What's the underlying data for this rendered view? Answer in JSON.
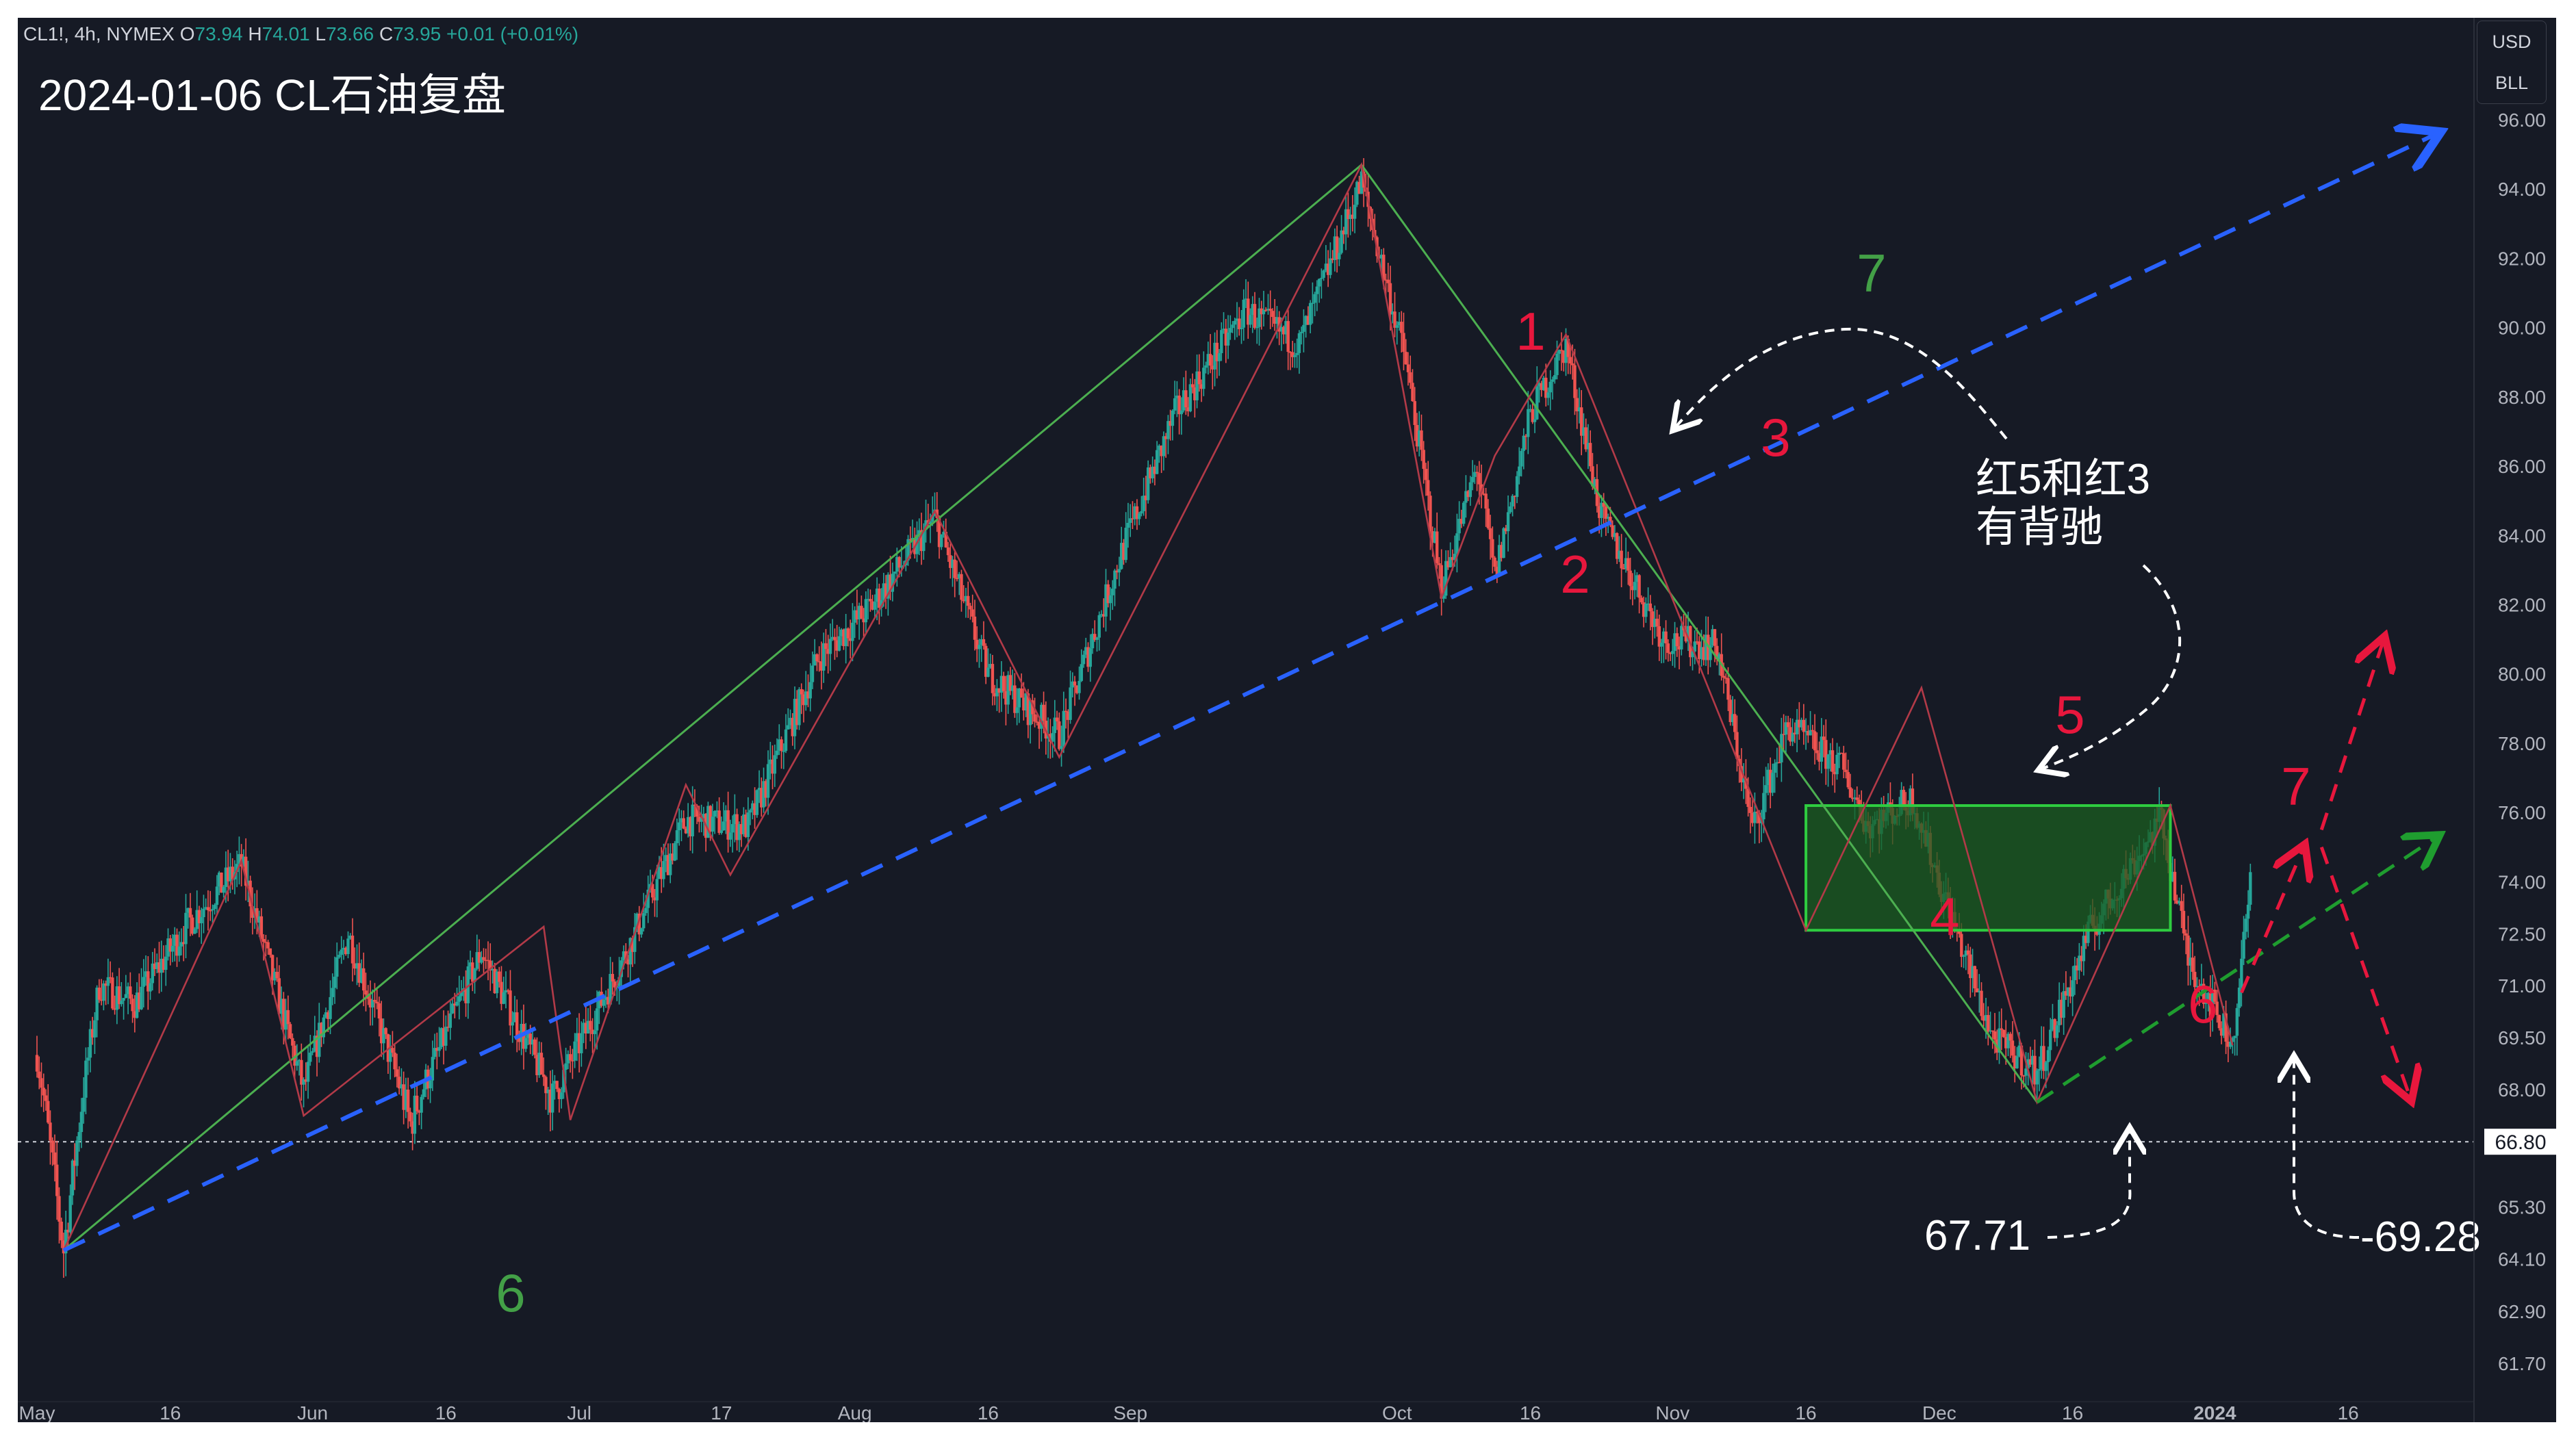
{
  "header": {
    "symbol": "CL1!, 4h, NYMEX",
    "o_label": "O",
    "o_value": "73.94",
    "h_label": "H",
    "h_value": "74.01",
    "l_label": "L",
    "l_value": "73.66",
    "c_label": "C",
    "c_value": "73.95",
    "change": "+0.01 (+0.01%)"
  },
  "title": "2024-01-06 CL石油复盘",
  "currency_box": {
    "currency": "USD",
    "unit": "BLL"
  },
  "colors": {
    "background": "#161a25",
    "up": "#26a69a",
    "down": "#ef5350",
    "green_wave": "#4caf50",
    "red_wave": "#b23a48",
    "blue_channel": "#2962ff",
    "green_channel": "#1f9d2f",
    "red_label": "#e8173d",
    "green_label": "#43a047",
    "box_fill": "#1b5e20",
    "box_border": "#2ecc40"
  },
  "chart_data": {
    "type": "candlestick",
    "symbol": "CL1!",
    "interval": "4h",
    "ylim": [
      60.5,
      96.5
    ],
    "y_ticks": [
      "96.00",
      "94.00",
      "92.00",
      "90.00",
      "88.00",
      "86.00",
      "84.00",
      "82.00",
      "80.00",
      "78.00",
      "76.00",
      "74.00",
      "72.50",
      "71.00",
      "69.50",
      "68.00",
      "65.30",
      "64.10",
      "62.90",
      "61.70"
    ],
    "x_ticks": [
      "May",
      "16",
      "Jun",
      "16",
      "Jul",
      "17",
      "Aug",
      "16",
      "Sep",
      "Oct",
      "16",
      "Nov",
      "16",
      "Dec",
      "16",
      "2024",
      "16"
    ],
    "current_price_line": "66.80",
    "close_path": [
      {
        "d": "2023-05-01",
        "v": 69.0
      },
      {
        "d": "2023-05-04",
        "v": 64.3
      },
      {
        "d": "2023-05-08",
        "v": 71.0
      },
      {
        "d": "2023-05-12",
        "v": 70.5
      },
      {
        "d": "2023-05-18",
        "v": 72.8
      },
      {
        "d": "2023-05-24",
        "v": 74.5
      },
      {
        "d": "2023-05-31",
        "v": 68.0
      },
      {
        "d": "2023-06-05",
        "v": 72.5
      },
      {
        "d": "2023-06-12",
        "v": 67.2
      },
      {
        "d": "2023-06-20",
        "v": 72.0
      },
      {
        "d": "2023-06-28",
        "v": 67.8
      },
      {
        "d": "2023-07-06",
        "v": 71.8
      },
      {
        "d": "2023-07-13",
        "v": 75.8
      },
      {
        "d": "2023-07-20",
        "v": 75.6
      },
      {
        "d": "2023-07-28",
        "v": 80.5
      },
      {
        "d": "2023-08-03",
        "v": 82.0
      },
      {
        "d": "2023-08-10",
        "v": 84.5
      },
      {
        "d": "2023-08-16",
        "v": 80.0
      },
      {
        "d": "2023-08-24",
        "v": 78.2
      },
      {
        "d": "2023-08-31",
        "v": 83.5
      },
      {
        "d": "2023-09-06",
        "v": 87.5
      },
      {
        "d": "2023-09-14",
        "v": 90.5
      },
      {
        "d": "2023-09-20",
        "v": 89.5
      },
      {
        "d": "2023-09-27",
        "v": 94.2
      },
      {
        "d": "2023-10-02",
        "v": 89.0
      },
      {
        "d": "2023-10-06",
        "v": 82.5
      },
      {
        "d": "2023-10-10",
        "v": 86.0
      },
      {
        "d": "2023-10-12",
        "v": 82.8
      },
      {
        "d": "2023-10-16",
        "v": 87.5
      },
      {
        "d": "2023-10-20",
        "v": 89.5
      },
      {
        "d": "2023-10-24",
        "v": 84.5
      },
      {
        "d": "2023-10-31",
        "v": 81.0
      },
      {
        "d": "2023-11-06",
        "v": 80.8
      },
      {
        "d": "2023-11-10",
        "v": 75.5
      },
      {
        "d": "2023-11-14",
        "v": 78.5
      },
      {
        "d": "2023-11-20",
        "v": 77.3
      },
      {
        "d": "2023-11-23",
        "v": 75.6
      },
      {
        "d": "2023-11-28",
        "v": 76.4
      },
      {
        "d": "2023-12-01",
        "v": 74.0
      },
      {
        "d": "2023-12-07",
        "v": 69.5
      },
      {
        "d": "2023-12-12",
        "v": 68.5
      },
      {
        "d": "2023-12-18",
        "v": 72.6
      },
      {
        "d": "2023-12-26",
        "v": 75.8
      },
      {
        "d": "2023-12-29",
        "v": 71.8
      },
      {
        "d": "2024-01-03",
        "v": 69.3
      },
      {
        "d": "2024-01-05",
        "v": 73.95
      }
    ],
    "green_wave": [
      {
        "label": "6",
        "d": "2023-05-04",
        "v": 64.3
      },
      {
        "label": "7",
        "d": "2023-09-27",
        "v": 94.7
      },
      {
        "label": "",
        "d": "2023-12-12",
        "v": 67.71
      }
    ],
    "red_wave": [
      {
        "d": "2023-05-04",
        "v": 64.3
      },
      {
        "d": "2023-05-24",
        "v": 74.6
      },
      {
        "d": "2023-05-31",
        "v": 67.4
      },
      {
        "d": "2023-06-27",
        "v": 72.7
      },
      {
        "d": "2023-06-30",
        "v": 67.3
      },
      {
        "d": "2023-07-13",
        "v": 76.8
      },
      {
        "d": "2023-07-18",
        "v": 74.2
      },
      {
        "d": "2023-08-10",
        "v": 84.7
      },
      {
        "d": "2023-08-24",
        "v": 77.6
      },
      {
        "d": "2023-09-27",
        "v": 94.7
      },
      {
        "label": "1",
        "d": "2023-10-06",
        "v": 82.2
      },
      {
        "label": "2",
        "d": "2023-10-12",
        "v": 86.3
      },
      {
        "label": "3",
        "d": "2023-10-20",
        "v": 89.8
      },
      {
        "label": "4",
        "d": "2023-11-16",
        "v": 72.6
      },
      {
        "label": "5",
        "d": "2023-11-29",
        "v": 79.6
      },
      {
        "label": "6",
        "d": "2023-12-12",
        "v": 67.71
      },
      {
        "label": "7",
        "d": "2023-12-27",
        "v": 76.2
      },
      {
        "label": "",
        "d": "2024-01-03",
        "v": 69.28
      }
    ],
    "blue_channel_line": [
      {
        "d": "2023-05-04",
        "v": 64.3
      },
      {
        "d": "2024-01-26",
        "v": 95.6
      }
    ],
    "green_channel_line": [
      {
        "d": "2023-12-12",
        "v": 67.71
      },
      {
        "d": "2024-01-26",
        "v": 75.3
      }
    ],
    "box": {
      "top": 76.2,
      "bottom": 72.6,
      "start": "2023-11-16",
      "end": "2023-12-27"
    },
    "projections": [
      {
        "color": "red",
        "from": {
          "d": "2024-01-04",
          "v": 70.8
        },
        "to": {
          "d": "2024-01-11",
          "v": 75.0
        }
      },
      {
        "color": "red",
        "from": {
          "d": "2024-01-13",
          "v": 75.5
        },
        "to": {
          "d": "2024-01-20",
          "v": 81.0
        }
      },
      {
        "color": "red",
        "from": {
          "d": "2024-01-13",
          "v": 75.0
        },
        "to": {
          "d": "2024-01-23",
          "v": 67.8
        }
      }
    ],
    "annotations": {
      "divergence_line1": "红5和红3",
      "divergence_line2": "有背驰",
      "low1": "67.71",
      "low2": "-69.28",
      "red_labels": [
        "1",
        "2",
        "3",
        "4",
        "5",
        "6",
        "7"
      ],
      "green_labels": [
        "6",
        "7"
      ]
    }
  }
}
